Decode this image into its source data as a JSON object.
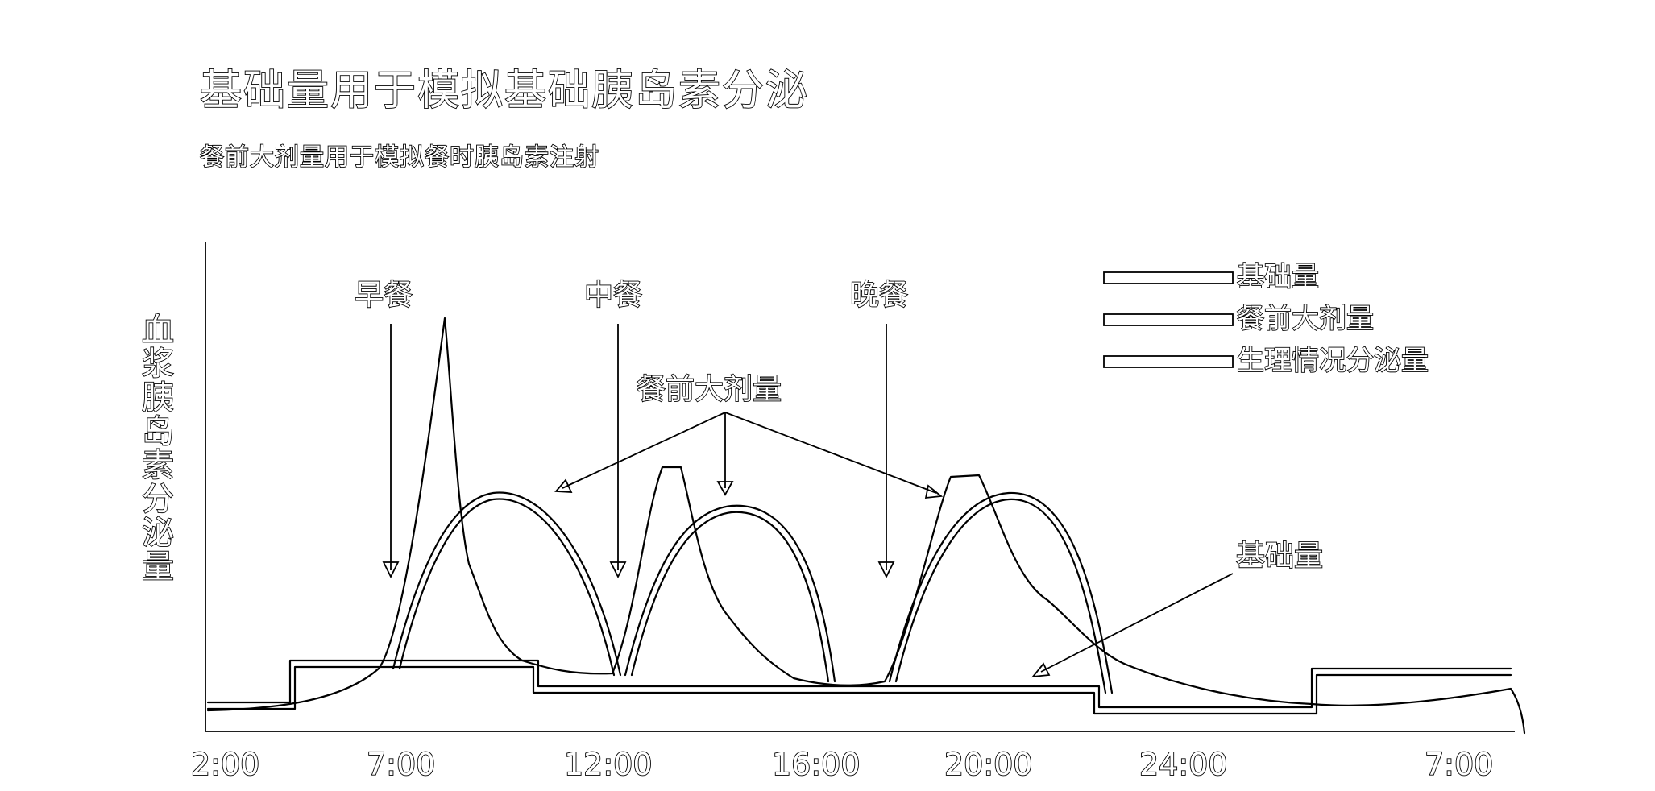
{
  "title": "基础量用于模拟基础胰岛素分泌",
  "subtitle": "餐前大剂量用于模拟餐时胰岛素注射",
  "y_axis_label": "血浆胰岛素分泌量",
  "x_ticks": [
    "2:00",
    "7:00",
    "12:00",
    "16:00",
    "20:00",
    "24:00",
    "7:00"
  ],
  "meals": {
    "breakfast": "早餐",
    "lunch": "中餐",
    "dinner": "晚餐"
  },
  "annotations": {
    "bolus": "餐前大剂量",
    "basal": "基础量"
  },
  "legend": [
    {
      "label": "基础量"
    },
    {
      "label": "餐前大剂量"
    },
    {
      "label": "生理情况分泌量"
    }
  ],
  "colors": {
    "stroke": "#000000",
    "background": "#ffffff"
  }
}
